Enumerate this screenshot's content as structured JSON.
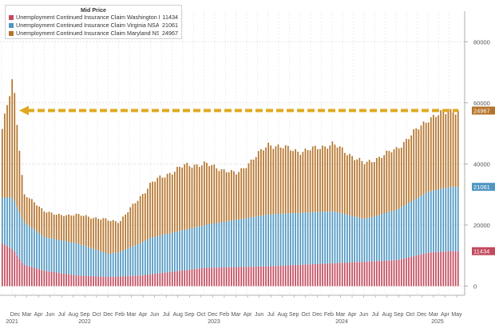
{
  "legend": {
    "title": "Mid Price",
    "items": [
      {
        "name": "Unemployment Continued Insurance Claim Washington DC NSA",
        "value": "11434",
        "color": "#c24a5e"
      },
      {
        "name": "Unemployment Continued Insurance Claim Virginia NSA",
        "value": "21061",
        "color": "#4f97c2"
      },
      {
        "name": "Unemployment Continued Insurance Claim Maryland NSA",
        "value": "24967",
        "color": "#b5742c"
      }
    ]
  },
  "chart_data": {
    "type": "bar",
    "stacked": true,
    "title": "",
    "xlabel": "",
    "ylabel": "",
    "ylim": [
      -3000,
      90000
    ],
    "yticks": [
      0,
      20000,
      40000,
      60000,
      80000
    ],
    "ytick_labels": [
      "0",
      "20000",
      "40000",
      "60000",
      "80000"
    ],
    "y_axis_side": "right",
    "grid": true,
    "legend_position": "top-left",
    "x_start": "2021-11",
    "x_end": "2025-05",
    "month_labels": [
      "Dec",
      "Mar",
      "Apr",
      "Jun",
      "Jul",
      "Aug",
      "Sep",
      "Oct",
      "Dec",
      "Feb",
      "Mar",
      "Apr",
      "Jun",
      "Jul",
      "Aug",
      "Sep",
      "Oct",
      "Dec",
      "Feb",
      "Mar",
      "Apr",
      "Jun",
      "Jul",
      "Aug",
      "Sep",
      "Oct",
      "Dec",
      "Feb",
      "Mar",
      "Apr",
      "Jun",
      "Jul",
      "Aug",
      "Sep",
      "Oct",
      "Dec",
      "Mar",
      "Apr",
      "May"
    ],
    "year_labels": [
      "2021",
      "2022",
      "2023",
      "2024",
      "2025"
    ],
    "last_value_labels": [
      {
        "series": "Maryland total",
        "value": "24967",
        "color": "#b5742c",
        "y_value": 57462
      },
      {
        "series": "Virginia",
        "value": "21061",
        "color": "#4f97c2",
        "y_value": 32495
      },
      {
        "series": "Washington DC",
        "value": "11434",
        "color": "#c24a5e",
        "y_value": 11434
      }
    ],
    "reference_line": {
      "value": 57462,
      "color": "#e0a822",
      "style": "dashed-arrow-left"
    },
    "series": [
      {
        "name": "Unemployment Continued Insurance Claim Washington DC NSA",
        "color": "#c24a5e",
        "knots": [
          [
            "2021-11",
            14000
          ],
          [
            "2021-12",
            12000
          ],
          [
            "2022-01",
            7000
          ],
          [
            "2022-03",
            5000
          ],
          [
            "2022-06",
            3500
          ],
          [
            "2022-09",
            3000
          ],
          [
            "2022-12",
            3500
          ],
          [
            "2023-06",
            6000
          ],
          [
            "2023-12",
            6500
          ],
          [
            "2024-06",
            7500
          ],
          [
            "2024-12",
            8500
          ],
          [
            "2025-03",
            11000
          ],
          [
            "2025-05",
            11434
          ]
        ]
      },
      {
        "name": "Unemployment Continued Insurance Claim Virginia NSA",
        "color": "#4f97c2",
        "knots": [
          [
            "2021-11",
            15000
          ],
          [
            "2021-12",
            17000
          ],
          [
            "2022-01",
            14000
          ],
          [
            "2022-03",
            11000
          ],
          [
            "2022-06",
            10500
          ],
          [
            "2022-09",
            7500
          ],
          [
            "2022-10",
            8000
          ],
          [
            "2023-01",
            12000
          ],
          [
            "2023-06",
            14000
          ],
          [
            "2023-12",
            17000
          ],
          [
            "2024-06",
            17000
          ],
          [
            "2024-09",
            14000
          ],
          [
            "2024-12",
            16500
          ],
          [
            "2025-03",
            20000
          ],
          [
            "2025-05",
            21061
          ]
        ]
      },
      {
        "name": "Unemployment Continued Insurance Claim Maryland NSA",
        "color": "#b5742c",
        "knots": [
          [
            "2021-11",
            22000
          ],
          [
            "2021-12",
            40000
          ],
          [
            "2022-01",
            9000
          ],
          [
            "2022-02",
            9000
          ],
          [
            "2022-04",
            8000
          ],
          [
            "2022-07",
            10000
          ],
          [
            "2022-09",
            11000
          ],
          [
            "2022-10",
            10000
          ],
          [
            "2023-01",
            18000
          ],
          [
            "2023-04",
            21000
          ],
          [
            "2023-06",
            20000
          ],
          [
            "2023-09",
            15000
          ],
          [
            "2023-12",
            23000
          ],
          [
            "2024-03",
            20000
          ],
          [
            "2024-06",
            22000
          ],
          [
            "2024-09",
            18000
          ],
          [
            "2024-12",
            20000
          ],
          [
            "2025-03",
            24000
          ],
          [
            "2025-05",
            24967
          ]
        ]
      }
    ]
  }
}
